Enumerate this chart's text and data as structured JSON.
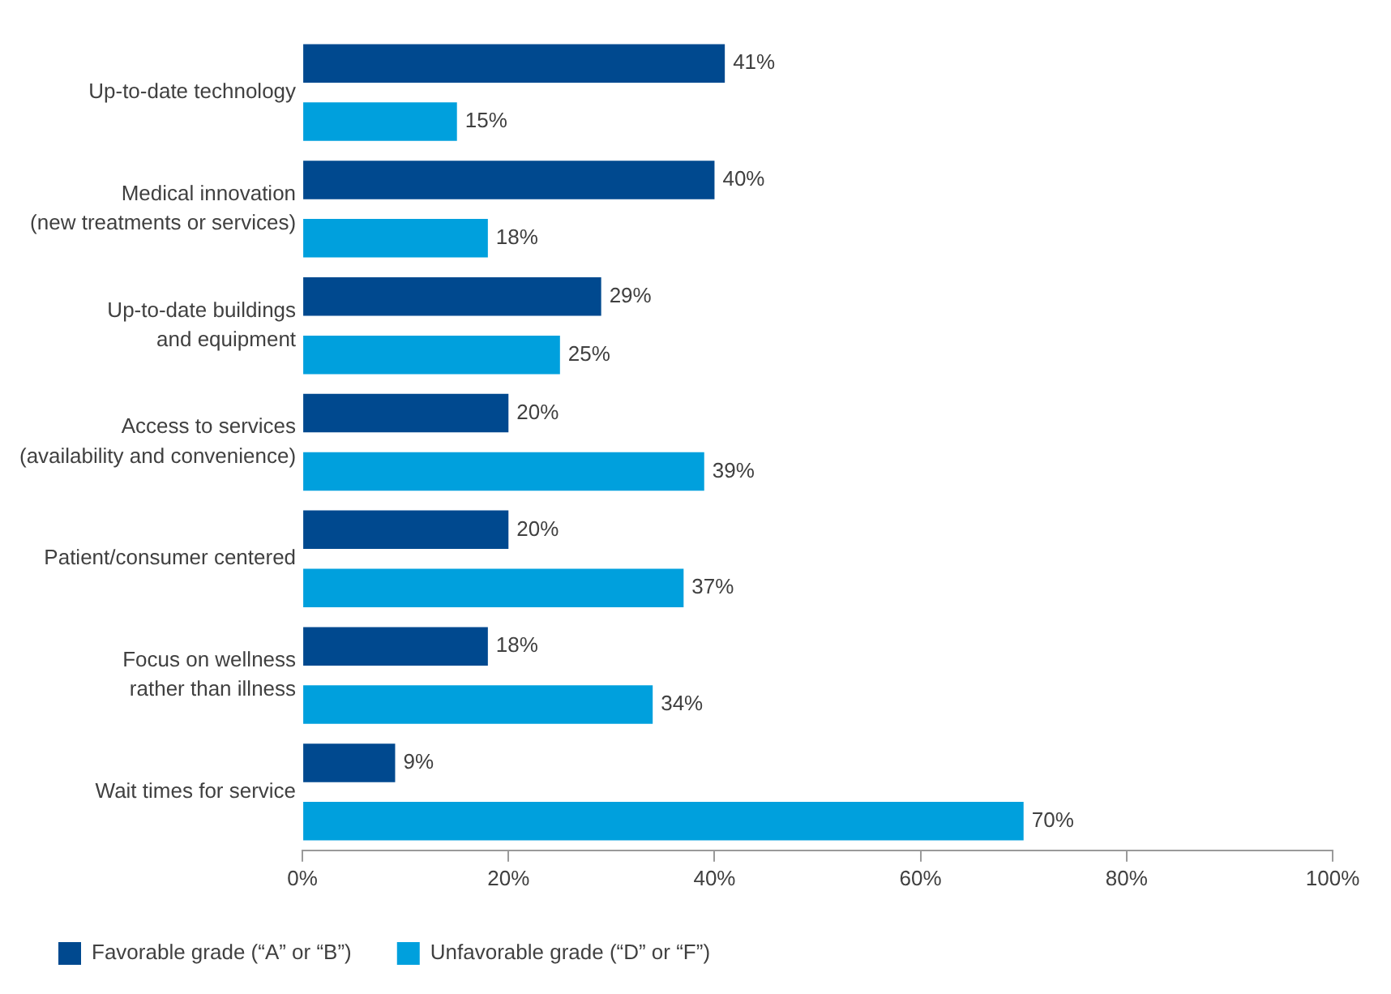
{
  "chart_data": {
    "type": "bar",
    "orientation": "horizontal",
    "categories": [
      "Up-to-date technology",
      "Medical innovation\n(new treatments or services)",
      "Up-to-date buildings\nand equipment",
      "Access to services\n(availability and convenience)",
      "Patient/consumer centered",
      "Focus on wellness\nrather than illness",
      "Wait times for service"
    ],
    "series": [
      {
        "name": "Favorable grade (“A” or “B”)",
        "color": "#00498f",
        "values": [
          41,
          40,
          29,
          20,
          20,
          18,
          9
        ],
        "value_labels": [
          "41%",
          "40%",
          "29%",
          "20%",
          "20%",
          "18%",
          "9%"
        ]
      },
      {
        "name": "Unfavorable grade (“D” or “F”)",
        "color": "#00a0dd",
        "values": [
          15,
          18,
          25,
          39,
          37,
          34,
          70
        ],
        "value_labels": [
          "15%",
          "18%",
          "25%",
          "39%",
          "37%",
          "34%",
          "70%"
        ]
      }
    ],
    "xlim": [
      0,
      100
    ],
    "xticks": [
      {
        "value": 0,
        "label": "0%"
      },
      {
        "value": 20,
        "label": "20%"
      },
      {
        "value": 40,
        "label": "40%"
      },
      {
        "value": 60,
        "label": "60%"
      },
      {
        "value": 80,
        "label": "80%"
      },
      {
        "value": 100,
        "label": "100%"
      }
    ],
    "grid": false,
    "legend": "bottom left"
  }
}
